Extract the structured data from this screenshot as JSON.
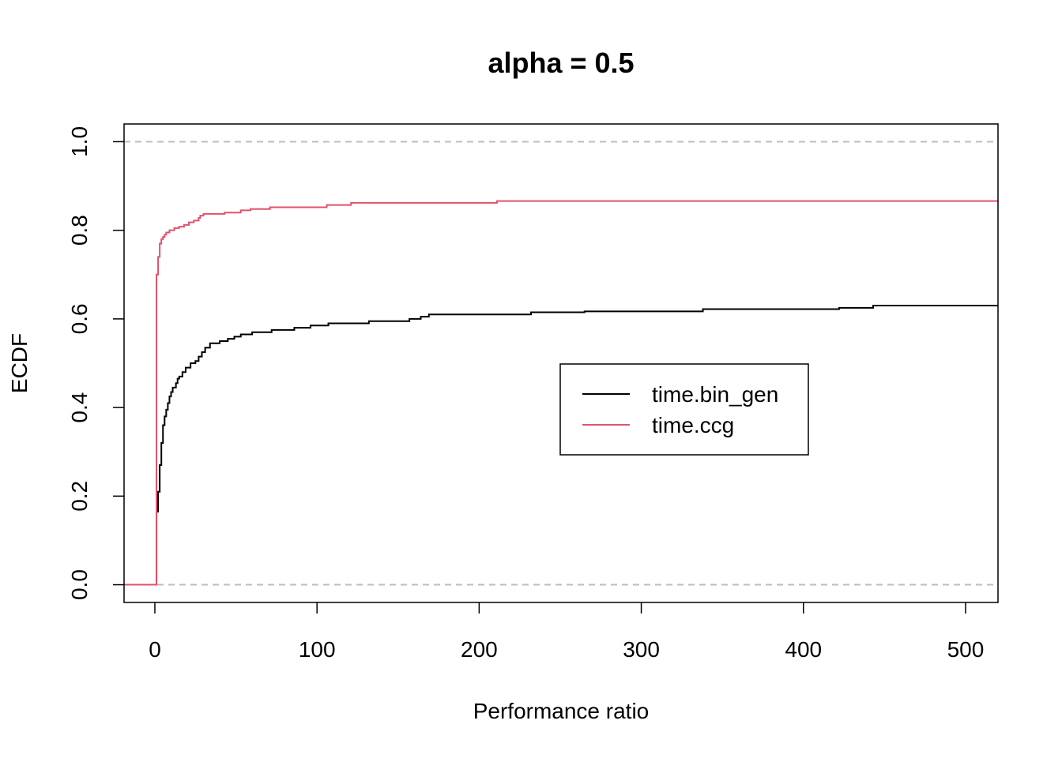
{
  "chart_data": {
    "type": "line",
    "title": "alpha = 0.5",
    "xlabel": "Performance ratio",
    "ylabel": "ECDF",
    "xlim": [
      -19,
      520
    ],
    "ylim": [
      -0.04,
      1.04
    ],
    "x_ticks": [
      "0",
      "100",
      "200",
      "300",
      "400",
      "500"
    ],
    "y_ticks": [
      "0.0",
      "0.2",
      "0.4",
      "0.6",
      "0.8",
      "1.0"
    ],
    "reference_lines": [
      0.0,
      1.0
    ],
    "legend_position": "center-right",
    "grid": false,
    "series": [
      {
        "name": "time.bin_gen",
        "color": "#000000",
        "step": true,
        "points": [
          [
            -19,
            0.0
          ],
          [
            1,
            0.0
          ],
          [
            1,
            0.165
          ],
          [
            2,
            0.21
          ],
          [
            3,
            0.27
          ],
          [
            4,
            0.32
          ],
          [
            5,
            0.36
          ],
          [
            6,
            0.38
          ],
          [
            7,
            0.395
          ],
          [
            8,
            0.41
          ],
          [
            9,
            0.425
          ],
          [
            10,
            0.435
          ],
          [
            11,
            0.445
          ],
          [
            13,
            0.455
          ],
          [
            14,
            0.465
          ],
          [
            15,
            0.47
          ],
          [
            17,
            0.48
          ],
          [
            19,
            0.49
          ],
          [
            22,
            0.5
          ],
          [
            25,
            0.505
          ],
          [
            27,
            0.515
          ],
          [
            29,
            0.525
          ],
          [
            31,
            0.535
          ],
          [
            34,
            0.545
          ],
          [
            40,
            0.55
          ],
          [
            45,
            0.555
          ],
          [
            49,
            0.56
          ],
          [
            53,
            0.565
          ],
          [
            60,
            0.57
          ],
          [
            72,
            0.575
          ],
          [
            86,
            0.58
          ],
          [
            96,
            0.585
          ],
          [
            107,
            0.59
          ],
          [
            132,
            0.595
          ],
          [
            157,
            0.6
          ],
          [
            164,
            0.605
          ],
          [
            169,
            0.61
          ],
          [
            232,
            0.615
          ],
          [
            265,
            0.617
          ],
          [
            338,
            0.622
          ],
          [
            422,
            0.625
          ],
          [
            443,
            0.63
          ],
          [
            520,
            0.63
          ]
        ]
      },
      {
        "name": "time.ccg",
        "color": "#DF536B",
        "step": true,
        "points": [
          [
            -19,
            0.0
          ],
          [
            1,
            0.0
          ],
          [
            1,
            0.7
          ],
          [
            2,
            0.74
          ],
          [
            3,
            0.77
          ],
          [
            4,
            0.78
          ],
          [
            5,
            0.785
          ],
          [
            6,
            0.79
          ],
          [
            7,
            0.795
          ],
          [
            9,
            0.8
          ],
          [
            12,
            0.805
          ],
          [
            15,
            0.808
          ],
          [
            18,
            0.812
          ],
          [
            21,
            0.818
          ],
          [
            24,
            0.822
          ],
          [
            27,
            0.828
          ],
          [
            28,
            0.833
          ],
          [
            30,
            0.837
          ],
          [
            43,
            0.84
          ],
          [
            53,
            0.845
          ],
          [
            59,
            0.848
          ],
          [
            71,
            0.852
          ],
          [
            106,
            0.857
          ],
          [
            121,
            0.862
          ],
          [
            211,
            0.866
          ],
          [
            520,
            0.866
          ]
        ]
      }
    ]
  }
}
